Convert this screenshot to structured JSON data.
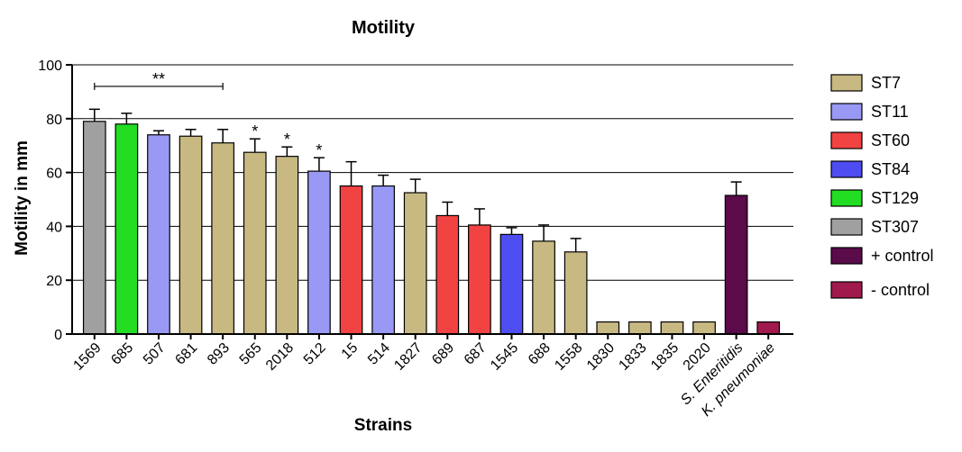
{
  "chart_data": {
    "type": "bar",
    "title": "Motility",
    "xlabel": "Strains",
    "ylabel": "Motility in mm",
    "ylim": [
      0,
      100
    ],
    "yticks": [
      "0",
      "20",
      "40",
      "60",
      "80",
      "100"
    ],
    "grid": true,
    "legend_position": "right",
    "categories": [
      "1569",
      "685",
      "507",
      "681",
      "893",
      "565",
      "2018",
      "512",
      "15",
      "514",
      "1827",
      "689",
      "687",
      "1545",
      "688",
      "1558",
      "1830",
      "1833",
      "1835",
      "2020",
      "S. Enteritidis",
      "K. pneumoniae"
    ],
    "italic_categories": [
      false,
      false,
      false,
      false,
      false,
      false,
      false,
      false,
      false,
      false,
      false,
      false,
      false,
      false,
      false,
      false,
      false,
      false,
      false,
      false,
      true,
      true
    ],
    "values": [
      79,
      78,
      74,
      73.5,
      71,
      67.5,
      66,
      60.5,
      55,
      55,
      52.5,
      44,
      40.5,
      37,
      34.5,
      30.5,
      4.5,
      4.5,
      4.5,
      4.5,
      51.5,
      4.5
    ],
    "errors": [
      4.5,
      4,
      1.5,
      2.5,
      5,
      5,
      3.5,
      5,
      9,
      4,
      5,
      5,
      6,
      2.5,
      6,
      5,
      0,
      0,
      0,
      0,
      5,
      0
    ],
    "groups": [
      "ST307",
      "ST129",
      "ST11",
      "ST7",
      "ST7",
      "ST7",
      "ST7",
      "ST11",
      "ST60",
      "ST11",
      "ST7",
      "ST60",
      "ST60",
      "ST84",
      "ST7",
      "ST7",
      "ST7",
      "ST7",
      "ST7",
      "ST7",
      "+ control",
      "- control"
    ],
    "legend": [
      {
        "name": "ST7",
        "color": "#c8b982"
      },
      {
        "name": "ST11",
        "color": "#9999f5"
      },
      {
        "name": "ST60",
        "color": "#f24343"
      },
      {
        "name": "ST84",
        "color": "#4d4df2"
      },
      {
        "name": "ST129",
        "color": "#22dd22"
      },
      {
        "name": "ST307",
        "color": "#a0a0a0"
      },
      {
        "name": "+ control",
        "color": "#5b0a4a"
      },
      {
        "name": "- control",
        "color": "#a01a4d"
      }
    ],
    "significance": [
      {
        "label": "**",
        "from_index": 0,
        "to_index": 4,
        "y": 92
      },
      {
        "label": "*",
        "index": 5
      },
      {
        "label": "*",
        "index": 6
      },
      {
        "label": "*",
        "index": 7
      }
    ]
  }
}
